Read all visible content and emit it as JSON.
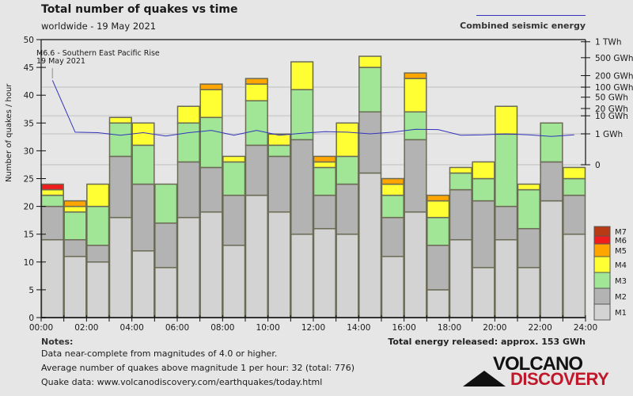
{
  "header": {
    "title": "Total number of quakes vs time",
    "subtitle": "worldwide - 19 May 2021",
    "energy_legend_label": "Combined seismic energy"
  },
  "notes": {
    "heading": "Notes:",
    "lines": [
      "Data near-complete from magnitudes of 4.0 or higher.",
      "Average number of quakes above magnitude 1 per hour: 32 (total: 776)",
      "Quake data: www.volcanodiscovery.com/earthquakes/today.html"
    ],
    "total_energy": "Total energy released: approx. 153 GWh"
  },
  "logo": {
    "line1": "VOLCANO",
    "line2": "DISCOVERY"
  },
  "chart_data": {
    "type": "bar",
    "stacked": true,
    "title": "Total number of quakes vs time",
    "subtitle": "worldwide - 19 May 2021",
    "xlabel": "",
    "ylabel": "Number of quakes / hour",
    "ylim": [
      0,
      50
    ],
    "yticks": [
      0,
      5,
      10,
      15,
      20,
      25,
      30,
      35,
      40,
      45,
      50
    ],
    "xticks": [
      "00:00",
      "02:00",
      "04:00",
      "06:00",
      "08:00",
      "10:00",
      "12:00",
      "14:00",
      "16:00",
      "18:00",
      "20:00",
      "22:00",
      "24:00"
    ],
    "categories": [
      "00",
      "01",
      "02",
      "03",
      "04",
      "05",
      "06",
      "07",
      "08",
      "09",
      "10",
      "11",
      "12",
      "13",
      "14",
      "15",
      "16",
      "17",
      "18",
      "19",
      "20",
      "21",
      "22",
      "23"
    ],
    "series": [
      {
        "name": "M1",
        "color": "#d3d3d3",
        "values": [
          14,
          11,
          10,
          18,
          12,
          9,
          18,
          19,
          13,
          22,
          19,
          15,
          16,
          15,
          26,
          11,
          19,
          5,
          14,
          9,
          14,
          9,
          21,
          15
        ]
      },
      {
        "name": "M2",
        "color": "#b3b3b3",
        "values": [
          6,
          3,
          3,
          11,
          12,
          8,
          10,
          8,
          9,
          9,
          10,
          17,
          6,
          9,
          11,
          7,
          13,
          8,
          9,
          12,
          6,
          7,
          7,
          7
        ]
      },
      {
        "name": "M3",
        "color": "#a0e696",
        "values": [
          2,
          5,
          7,
          6,
          7,
          7,
          7,
          9,
          6,
          8,
          2,
          9,
          5,
          5,
          8,
          4,
          5,
          5,
          3,
          4,
          13,
          7,
          7,
          3
        ]
      },
      {
        "name": "M4",
        "color": "#ffff33",
        "values": [
          1,
          1,
          4,
          1,
          4,
          0,
          3,
          5,
          1,
          3,
          2,
          5,
          1,
          6,
          2,
          2,
          6,
          3,
          1,
          3,
          5,
          1,
          0,
          2
        ]
      },
      {
        "name": "M5",
        "color": "#ffa500",
        "values": [
          0,
          1,
          0,
          0,
          0,
          0,
          0,
          1,
          0,
          1,
          0,
          0,
          1,
          0,
          0,
          1,
          1,
          1,
          0,
          0,
          0,
          0,
          0,
          0
        ]
      },
      {
        "name": "M6",
        "color": "#ee1c1c",
        "values": [
          1,
          0,
          0,
          0,
          0,
          0,
          0,
          0,
          0,
          0,
          0,
          0,
          0,
          0,
          0,
          0,
          0,
          0,
          0,
          0,
          0,
          0,
          0,
          0
        ]
      },
      {
        "name": "M7",
        "color": "#b83a14",
        "values": [
          0,
          0,
          0,
          0,
          0,
          0,
          0,
          0,
          0,
          0,
          0,
          0,
          0,
          0,
          0,
          0,
          0,
          0,
          0,
          0,
          0,
          0,
          0,
          0
        ]
      }
    ],
    "legend": {
      "position": "right",
      "order": [
        "M7",
        "M6",
        "M5",
        "M4",
        "M3",
        "M2",
        "M1"
      ]
    },
    "energy_series": {
      "name": "Combined seismic energy",
      "unit": "GWh",
      "color": "#3333bb",
      "scale": "fifth-root",
      "axis_ticks": [
        {
          "label": "0",
          "value": 0
        },
        {
          "label": "1 GWh",
          "value": 1
        },
        {
          "label": "10 GWh",
          "value": 10
        },
        {
          "label": "20 GWh",
          "value": 20
        },
        {
          "label": "50 GWh",
          "value": 50
        },
        {
          "label": "100 GWh",
          "value": 100
        },
        {
          "label": "200 GWh",
          "value": 200
        },
        {
          "label": "500 GWh",
          "value": 500
        },
        {
          "label": "1 TWh",
          "value": 1000
        }
      ],
      "values": [
        152,
        1.3,
        1.2,
        0.8,
        1.2,
        0.7,
        1.2,
        1.7,
        0.8,
        1.7,
        0.8,
        1.1,
        1.4,
        1.3,
        1.0,
        1.3,
        2.0,
        1.9,
        0.8,
        0.85,
        1.0,
        0.85,
        0.65,
        0.85
      ]
    },
    "annotation": {
      "text_line1": "M6.6 - Southern East Pacific Rise",
      "text_line2": "19 May 2021",
      "hour": 0
    },
    "grid": true
  }
}
